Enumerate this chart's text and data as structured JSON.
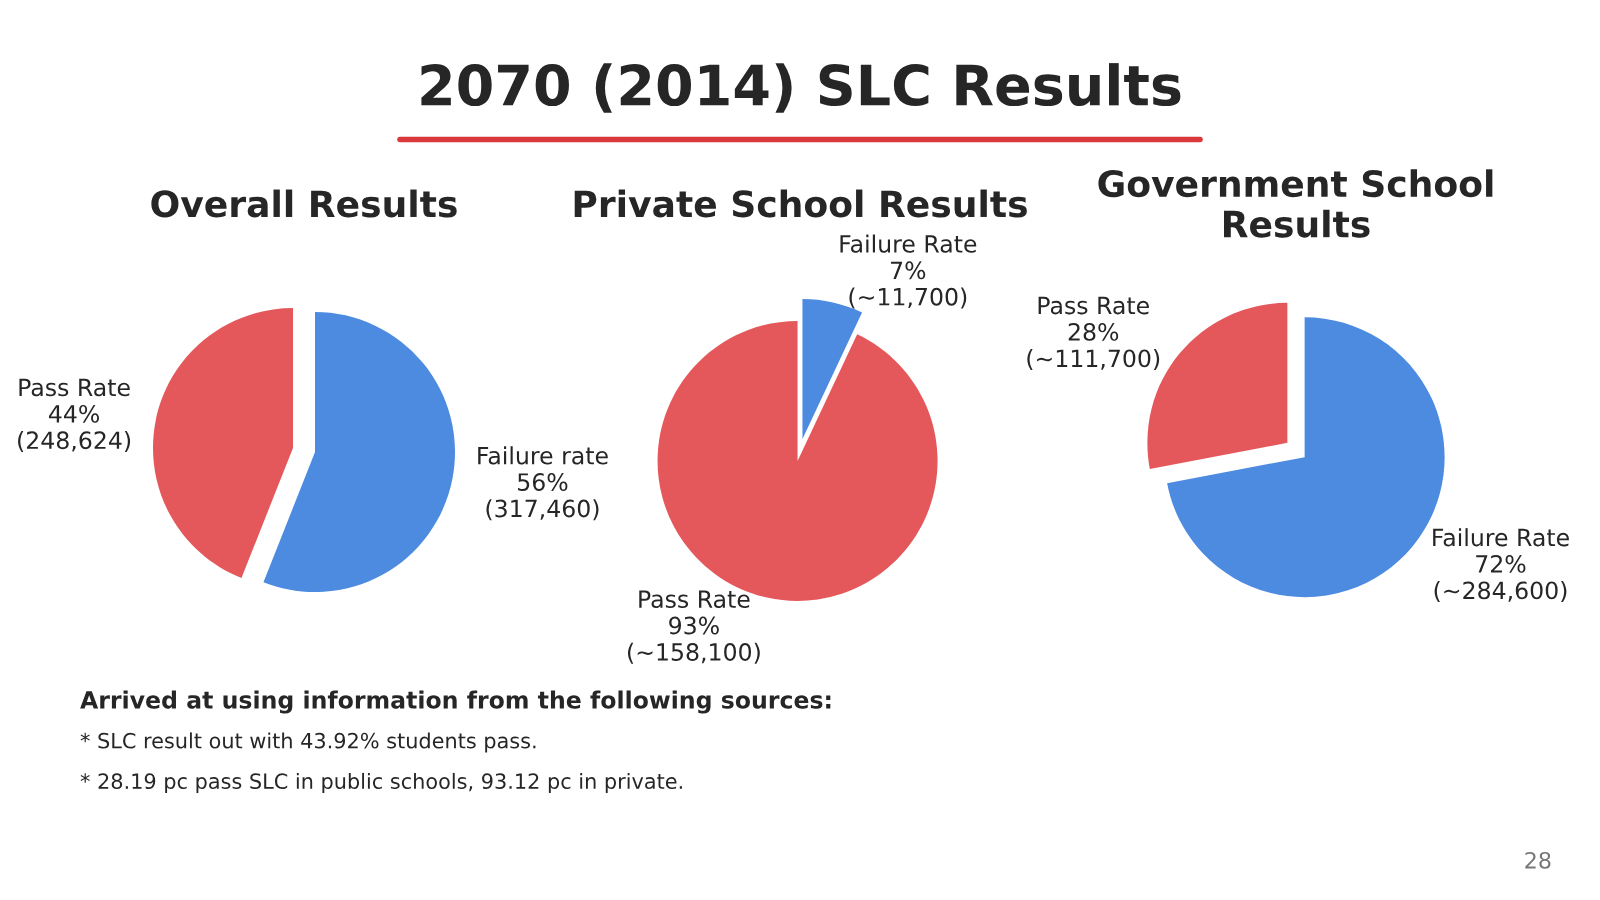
{
  "chart_data": [
    {
      "type": "pie",
      "title": "Overall Results",
      "categories": [
        "Pass Rate",
        "Failure rate"
      ],
      "values": [
        44,
        56
      ],
      "value_labels": [
        "44%\n(248,624)",
        "56%\n(317,460)"
      ],
      "colors": [
        "#e4585b",
        "#4d8be0"
      ],
      "annotations": [
        "Arrived at using information from the following sources:",
        "* SLC result out with 43.92% students pass.",
        "* 28.19 pc pass SLC in public schools, 93.12 pc in private.",
        "28"
      ]
    },
    {
      "type": "pie",
      "title": "2070 (2014) SLC Results",
      "subtitle": "Private School Results",
      "categories": [
        "Pass Rate",
        "Failure Rate"
      ],
      "values": [
        93,
        7
      ],
      "value_labels": [
        "93%\n(~158,100)",
        "7%\n(~11,700)"
      ],
      "colors": [
        "#e4585b",
        "#4d8be0"
      ]
    },
    {
      "type": "pie",
      "title": "Government School\nResults",
      "categories": [
        "Pass Rate",
        "Failure Rate"
      ],
      "values": [
        28,
        72
      ],
      "value_labels": [
        "28%\n(~111,700)",
        "72%\n(~284,600)"
      ],
      "colors": [
        "#e4585b",
        "#4d8be0"
      ]
    }
  ]
}
